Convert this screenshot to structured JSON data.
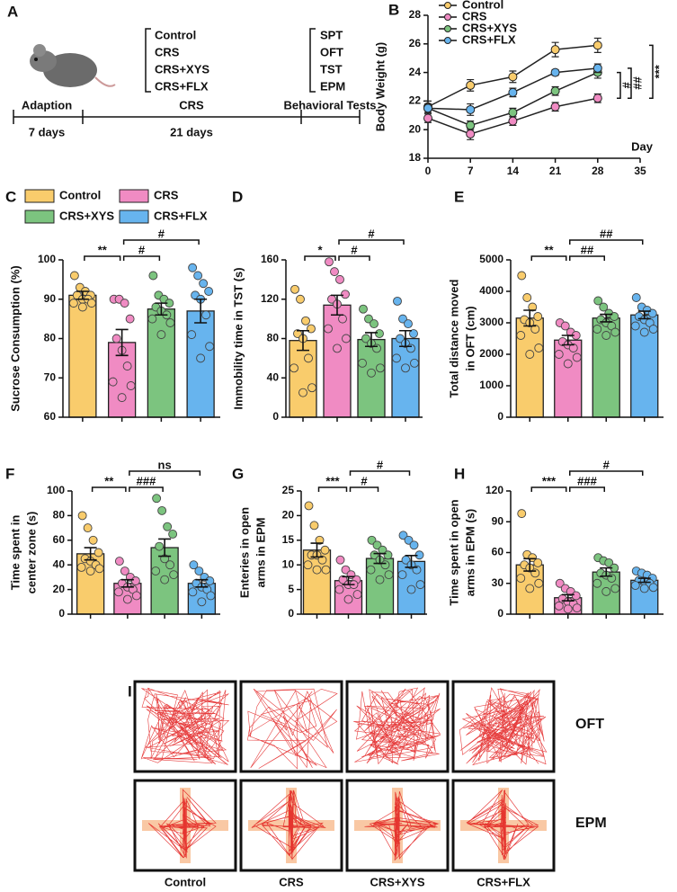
{
  "panel_a": {
    "label": "A",
    "groups": [
      "Control",
      "CRS",
      "CRS+XYS",
      "CRS+FLX"
    ],
    "tests": [
      "SPT",
      "OFT",
      "TST",
      "EPM"
    ],
    "stages": [
      "Adaption",
      "CRS",
      "Behavioral Tests"
    ],
    "durations": [
      "7 days",
      "21 days"
    ]
  },
  "chart_data": [
    {
      "type": "line",
      "label": "B",
      "ylabel": "Body Weight (g)",
      "xlabel": "Day",
      "x": [
        0,
        7,
        14,
        21,
        28
      ],
      "xlim": [
        0,
        35
      ],
      "xticks": [
        0,
        7,
        14,
        21,
        28,
        35
      ],
      "ylim": [
        18,
        28
      ],
      "yticks": [
        18,
        20,
        22,
        24,
        26,
        28
      ],
      "legend": "upper left",
      "series": [
        {
          "name": "Control",
          "color": "#f9cc6c",
          "values": [
            21.6,
            23.1,
            23.7,
            25.6,
            25.9
          ],
          "errors": [
            0.4,
            0.4,
            0.4,
            0.5,
            0.5
          ]
        },
        {
          "name": "CRS",
          "color": "#f08bc3",
          "values": [
            20.8,
            19.7,
            20.6,
            21.6,
            22.2
          ],
          "errors": [
            0.3,
            0.4,
            0.3,
            0.3,
            0.3
          ]
        },
        {
          "name": "CRS+XYS",
          "color": "#7cc47f",
          "values": [
            21.5,
            20.3,
            21.2,
            22.7,
            24.0
          ],
          "errors": [
            0.3,
            0.3,
            0.3,
            0.3,
            0.4
          ]
        },
        {
          "name": "CRS+FLX",
          "color": "#67b4ee",
          "values": [
            21.5,
            21.4,
            22.6,
            24.0,
            24.3
          ],
          "errors": [
            0.3,
            0.4,
            0.3,
            0.2,
            0.3
          ]
        }
      ],
      "annotations": [
        "#",
        "##",
        "***"
      ]
    },
    {
      "type": "bar",
      "label": "C",
      "ylabel": "Sucrose Consumption (%)",
      "categories": [
        "Control",
        "CRS",
        "CRS+XYS",
        "CRS+FLX"
      ],
      "legend": "top",
      "colors": [
        "#f9cc6c",
        "#f08bc3",
        "#7cc47f",
        "#67b4ee"
      ],
      "ylim": [
        60,
        100
      ],
      "yticks": [
        60,
        70,
        80,
        90,
        100
      ],
      "values": [
        91,
        79,
        87.5,
        87
      ],
      "errors": [
        1,
        3.3,
        1.5,
        3
      ],
      "points": [
        [
          96,
          93,
          92,
          91,
          91,
          90,
          90,
          89,
          89,
          88
        ],
        [
          90,
          90,
          89,
          85,
          80,
          77,
          73,
          69,
          68,
          65
        ],
        [
          96,
          91,
          90,
          89,
          88,
          87,
          86,
          85,
          84,
          81
        ],
        [
          98,
          96,
          94,
          92,
          91,
          90,
          86,
          81,
          78,
          75
        ]
      ],
      "annotations": [
        "**",
        "#",
        "#"
      ]
    },
    {
      "type": "bar",
      "label": "D",
      "ylabel": "Immobility time in TST (s)",
      "colors": [
        "#f9cc6c",
        "#f08bc3",
        "#7cc47f",
        "#67b4ee"
      ],
      "ylim": [
        0,
        160
      ],
      "yticks": [
        0,
        40,
        80,
        120,
        160
      ],
      "values": [
        78,
        114,
        79,
        80
      ],
      "errors": [
        10,
        10,
        7,
        8
      ],
      "points": [
        [
          130,
          120,
          98,
          90,
          85,
          80,
          60,
          50,
          30,
          25
        ],
        [
          158,
          148,
          140,
          125,
          120,
          115,
          100,
          90,
          80,
          70
        ],
        [
          110,
          100,
          95,
          85,
          80,
          75,
          70,
          55,
          50,
          45
        ],
        [
          118,
          100,
          95,
          85,
          80,
          75,
          70,
          60,
          55,
          50
        ]
      ],
      "annotations": [
        "*",
        "#",
        "#"
      ]
    },
    {
      "type": "bar",
      "label": "E",
      "ylabel": [
        "Total distance moved",
        "in OFT (cm)"
      ],
      "colors": [
        "#f9cc6c",
        "#f08bc3",
        "#7cc47f",
        "#67b4ee"
      ],
      "ylim": [
        0,
        5000
      ],
      "yticks": [
        0,
        1000,
        2000,
        3000,
        4000,
        5000
      ],
      "values": [
        3150,
        2450,
        3150,
        3250
      ],
      "errors": [
        250,
        150,
        120,
        120
      ],
      "points": [
        [
          4500,
          3800,
          3500,
          3200,
          3100,
          3000,
          2800,
          2600,
          2200,
          2000
        ],
        [
          3000,
          2900,
          2700,
          2600,
          2400,
          2300,
          2200,
          2000,
          1900,
          1700
        ],
        [
          3700,
          3500,
          3300,
          3200,
          3100,
          3000,
          2900,
          2800,
          2700,
          2600
        ],
        [
          3800,
          3500,
          3400,
          3300,
          3200,
          3100,
          3000,
          2900,
          2800,
          2700
        ]
      ],
      "annotations": [
        "**",
        "##",
        "##"
      ]
    },
    {
      "type": "bar",
      "label": "F",
      "ylabel": [
        "Time spent in",
        "center zone (s)"
      ],
      "colors": [
        "#f9cc6c",
        "#f08bc3",
        "#7cc47f",
        "#67b4ee"
      ],
      "ylim": [
        0,
        100
      ],
      "yticks": [
        0,
        20,
        40,
        60,
        80,
        100
      ],
      "values": [
        49,
        25,
        54,
        25
      ],
      "errors": [
        5,
        3,
        7,
        3
      ],
      "points": [
        [
          80,
          70,
          60,
          50,
          45,
          43,
          40,
          38,
          37,
          35
        ],
        [
          43,
          35,
          30,
          27,
          25,
          22,
          20,
          18,
          15,
          12
        ],
        [
          94,
          84,
          71,
          65,
          55,
          45,
          40,
          35,
          32,
          28
        ],
        [
          40,
          35,
          30,
          27,
          25,
          22,
          20,
          18,
          15,
          10
        ]
      ],
      "annotations": [
        "**",
        "###",
        "ns"
      ]
    },
    {
      "type": "bar",
      "label": "G",
      "ylabel": [
        "Enteries in open",
        "arms in EPM"
      ],
      "colors": [
        "#f9cc6c",
        "#f08bc3",
        "#7cc47f",
        "#67b4ee"
      ],
      "ylim": [
        0,
        25
      ],
      "yticks": [
        0,
        5,
        10,
        15,
        20,
        25
      ],
      "values": [
        13,
        6.8,
        11.3,
        10.7
      ],
      "errors": [
        1.4,
        0.8,
        1,
        1.2
      ],
      "points": [
        [
          22,
          18,
          15,
          13,
          12,
          12,
          11,
          10,
          9,
          9
        ],
        [
          11,
          9,
          8,
          7,
          7,
          6,
          6,
          5,
          4,
          3
        ],
        [
          15,
          14,
          13,
          12,
          12,
          11,
          10,
          9,
          8,
          7
        ],
        [
          16,
          15,
          14,
          12,
          11,
          10,
          9,
          8,
          6,
          5
        ]
      ],
      "annotations": [
        "***",
        "#",
        "#"
      ]
    },
    {
      "type": "bar",
      "label": "H",
      "ylabel": [
        "Time spent in open",
        "arms in EPM (s)"
      ],
      "colors": [
        "#f9cc6c",
        "#f08bc3",
        "#7cc47f",
        "#67b4ee"
      ],
      "ylim": [
        0,
        120
      ],
      "yticks": [
        0,
        30,
        60,
        90,
        120
      ],
      "values": [
        48,
        16,
        41,
        33
      ],
      "errors": [
        6,
        3,
        4,
        2
      ],
      "points": [
        [
          98,
          58,
          55,
          50,
          48,
          45,
          40,
          35,
          30,
          25
        ],
        [
          30,
          25,
          22,
          18,
          15,
          12,
          10,
          8,
          6,
          5
        ],
        [
          55,
          52,
          50,
          45,
          40,
          38,
          35,
          30,
          25,
          22
        ],
        [
          42,
          40,
          38,
          35,
          33,
          32,
          30,
          28,
          26,
          25
        ]
      ],
      "annotations": [
        "***",
        "###",
        "#"
      ]
    }
  ],
  "panel_i": {
    "label": "I",
    "rows": [
      "OFT",
      "EPM"
    ],
    "columns": [
      "Control",
      "CRS",
      "CRS+XYS",
      "CRS+FLX"
    ]
  }
}
